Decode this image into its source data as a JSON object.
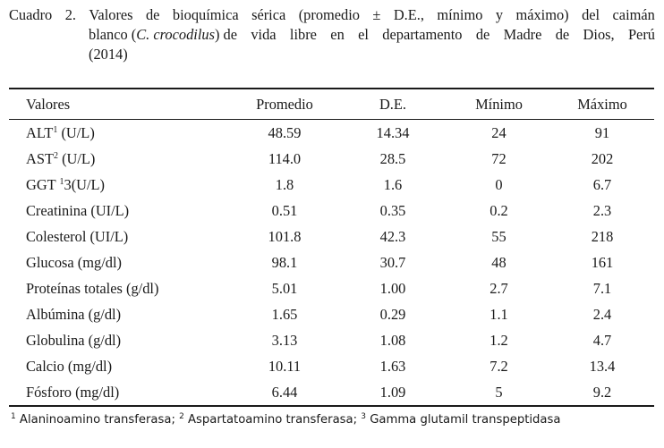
{
  "caption": {
    "line1_words": [
      "Cuadro",
      "2.",
      "Valores",
      "de",
      "bioquímica",
      "sérica",
      "(promedio",
      "±",
      "D.E.,",
      "mínimo",
      "y",
      "máximo)",
      "del",
      "caimán"
    ],
    "line2_prefix": "blanco (",
    "line2_species": "C. crocodilus",
    "line2_suffix_words": [
      ")",
      "de",
      "vida",
      "libre",
      "en",
      "el",
      "departamento",
      "de",
      "Madre",
      "de",
      "Dios,",
      "Perú"
    ],
    "line3": "(2014)"
  },
  "table": {
    "headers": [
      "Valores",
      "Promedio",
      "D.E.",
      "Mínimo",
      "Máximo"
    ],
    "rows": [
      {
        "name": "ALT",
        "sup": "1",
        "suffix": " (U/L)",
        "values": [
          "48.59",
          "14.34",
          "24",
          "91"
        ]
      },
      {
        "name": "AST",
        "sup": "2",
        "suffix": " (U/L)",
        "values": [
          "114.0",
          "28.5",
          "72",
          "202"
        ]
      },
      {
        "name": "GGT ",
        "sup": "1",
        "suffix": "3(U/L)",
        "values": [
          "1.8",
          "1.6",
          "0",
          "6.7"
        ]
      },
      {
        "name": "Creatinina (UI/L)",
        "sup": "",
        "suffix": "",
        "values": [
          "0.51",
          "0.35",
          "0.2",
          "2.3"
        ]
      },
      {
        "name": "Colesterol (UI/L)",
        "sup": "",
        "suffix": "",
        "values": [
          "101.8",
          "42.3",
          "55",
          "218"
        ]
      },
      {
        "name": "Glucosa (mg/dl)",
        "sup": "",
        "suffix": "",
        "values": [
          "98.1",
          "30.7",
          "48",
          "161"
        ]
      },
      {
        "name": "Proteínas totales (g/dl)",
        "sup": "",
        "suffix": "",
        "values": [
          "5.01",
          "1.00",
          "2.7",
          "7.1"
        ]
      },
      {
        "name": "Albúmina (g/dl)",
        "sup": "",
        "suffix": "",
        "values": [
          "1.65",
          "0.29",
          "1.1",
          "2.4"
        ]
      },
      {
        "name": "Globulina (g/dl)",
        "sup": "",
        "suffix": "",
        "values": [
          "3.13",
          "1.08",
          "1.2",
          "4.7"
        ]
      },
      {
        "name": "Calcio (mg/dl)",
        "sup": "",
        "suffix": "",
        "values": [
          "10.11",
          "1.63",
          "7.2",
          "13.4"
        ]
      },
      {
        "name": "Fósforo (mg/dl)",
        "sup": "",
        "suffix": "",
        "values": [
          "6.44",
          "1.09",
          "5",
          "9.2"
        ]
      }
    ]
  },
  "footnote": {
    "items": [
      {
        "sup": "1",
        "text": " Alaninoamino transferasa; "
      },
      {
        "sup": "2",
        "text": " Aspartatoamino transferasa; "
      },
      {
        "sup": "3",
        "text": " Gamma glutamil transpeptidasa"
      }
    ]
  }
}
